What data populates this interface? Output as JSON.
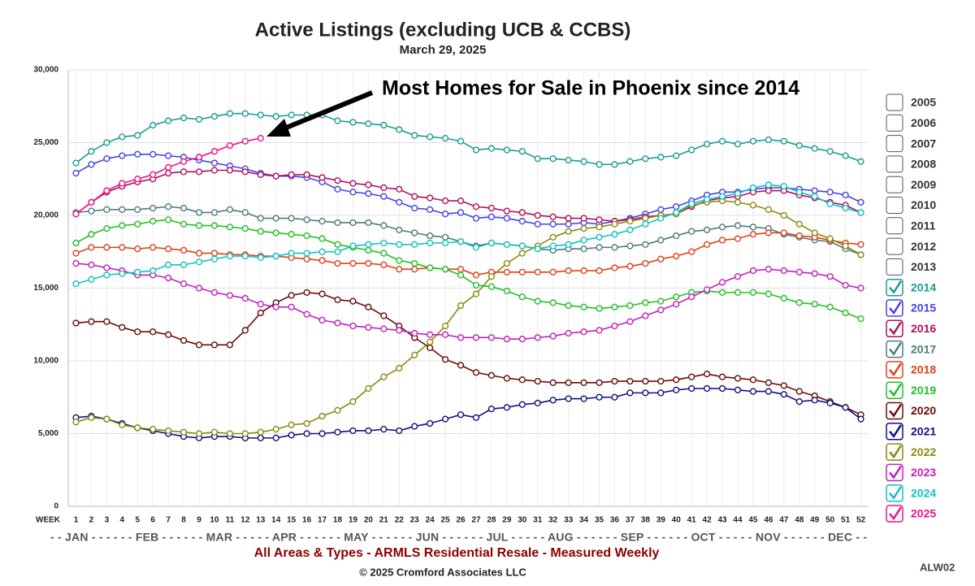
{
  "chart_data": {
    "type": "line",
    "title": "Active Listings (excluding UCB & CCBS)",
    "subtitle": "March 29, 2025",
    "annotation": "Most Homes for Sale in Phoenix since 2014",
    "x_label": "WEEK",
    "x_axis_months": "- - JAN - - - - - - FEB - - - - - - MAR - - - - - APR - - - - - - MAY - - - - - - JUN - - - - - - JUL - - - - - AUG - - - - - - SEP - - - - - - OCT - - - - - NOV - - - - - - DEC - -",
    "caption": "All Areas & Types - ARMLS Residential Resale - Measured Weekly",
    "copyright": "© 2025 Cromford Associates LLC",
    "code": "ALW02",
    "unchecked_years": [
      "2005",
      "2006",
      "2007",
      "2008",
      "2009",
      "2010",
      "2011",
      "2012",
      "2013"
    ],
    "grid": true,
    "xlim": [
      0.5,
      52.5
    ],
    "xticks": [
      1,
      2,
      3,
      4,
      5,
      6,
      7,
      8,
      9,
      10,
      11,
      12,
      13,
      14,
      15,
      16,
      17,
      18,
      19,
      20,
      21,
      22,
      23,
      24,
      25,
      26,
      27,
      28,
      29,
      30,
      31,
      32,
      33,
      34,
      35,
      36,
      37,
      38,
      39,
      40,
      41,
      42,
      43,
      44,
      45,
      46,
      47,
      48,
      49,
      50,
      51,
      52
    ],
    "ylim": [
      0,
      30000
    ],
    "yticks": [
      0,
      {
        "value": 5000,
        "label": "5,000"
      },
      {
        "value": 10000,
        "label": "10,000"
      },
      {
        "value": 15000,
        "label": "15,000"
      },
      {
        "value": 20000,
        "label": "20,000"
      },
      {
        "value": 25000,
        "label": "25,000"
      },
      {
        "value": 30000,
        "label": "30,000"
      }
    ],
    "x": [
      1,
      2,
      3,
      4,
      5,
      6,
      7,
      8,
      9,
      10,
      11,
      12,
      13,
      14,
      15,
      16,
      17,
      18,
      19,
      20,
      21,
      22,
      23,
      24,
      25,
      26,
      27,
      28,
      29,
      30,
      31,
      32,
      33,
      34,
      35,
      36,
      37,
      38,
      39,
      40,
      41,
      42,
      43,
      44,
      45,
      46,
      47,
      48,
      49,
      50,
      51,
      52
    ],
    "series": [
      {
        "name": "2014",
        "color": "#1a9e8c",
        "values": [
          23600,
          24400,
          25000,
          25400,
          25500,
          26200,
          26500,
          26700,
          26600,
          26800,
          27000,
          27000,
          26900,
          26800,
          26900,
          26900,
          26900,
          26500,
          26400,
          26300,
          26200,
          25900,
          25500,
          25400,
          25300,
          25100,
          24500,
          24600,
          24500,
          24400,
          23900,
          23900,
          23800,
          23700,
          23500,
          23500,
          23700,
          23900,
          24000,
          24100,
          24500,
          24900,
          25100,
          24900,
          25100,
          25200,
          25100,
          24800,
          24600,
          24400,
          24100,
          23700
        ]
      },
      {
        "name": "2015",
        "color": "#4444e6",
        "values": [
          22900,
          23500,
          23900,
          24100,
          24200,
          24200,
          24100,
          24000,
          23800,
          23600,
          23400,
          23200,
          22900,
          22700,
          22700,
          22600,
          22300,
          21800,
          21600,
          21500,
          21300,
          20900,
          20500,
          20400,
          20100,
          20200,
          19800,
          19900,
          19800,
          19600,
          19400,
          19400,
          19400,
          19500,
          19400,
          19600,
          19800,
          20100,
          20400,
          20600,
          21000,
          21400,
          21600,
          21600,
          21800,
          21900,
          21900,
          21800,
          21700,
          21600,
          21400,
          20900
        ]
      },
      {
        "name": "2016",
        "color": "#b0105a",
        "values": [
          20100,
          20900,
          21600,
          22000,
          22300,
          22500,
          22900,
          23000,
          23000,
          23100,
          23100,
          23000,
          22800,
          22700,
          22800,
          22800,
          22600,
          22400,
          22200,
          22100,
          21900,
          21800,
          21300,
          21200,
          21000,
          21000,
          20600,
          20500,
          20300,
          20200,
          20000,
          19900,
          19800,
          19800,
          19700,
          19600,
          19700,
          19900,
          20000,
          20100,
          20600,
          21000,
          21200,
          21300,
          21600,
          21700,
          21700,
          21400,
          21200,
          20900,
          20700,
          20200
        ]
      },
      {
        "name": "2017",
        "color": "#4e7b7b",
        "values": [
          20200,
          20300,
          20400,
          20400,
          20400,
          20500,
          20600,
          20500,
          20200,
          20200,
          20400,
          20200,
          19800,
          19800,
          19800,
          19700,
          19600,
          19500,
          19500,
          19500,
          19300,
          19000,
          18800,
          18600,
          18500,
          18200,
          17900,
          18100,
          18000,
          17900,
          17700,
          17600,
          17700,
          17700,
          17800,
          17800,
          17900,
          18000,
          18300,
          18600,
          18900,
          19000,
          19200,
          19300,
          19200,
          19100,
          18700,
          18500,
          18300,
          18200,
          17700,
          17300
        ]
      },
      {
        "name": "2018",
        "color": "#e0401a",
        "values": [
          17400,
          17800,
          17800,
          17800,
          17700,
          17800,
          17700,
          17600,
          17400,
          17400,
          17300,
          17300,
          17200,
          17200,
          17100,
          17000,
          16900,
          16700,
          16700,
          16700,
          16600,
          16300,
          16300,
          16400,
          16300,
          16300,
          15900,
          16100,
          16100,
          16100,
          16100,
          16100,
          16200,
          16200,
          16200,
          16400,
          16500,
          16700,
          17000,
          17200,
          17500,
          18000,
          18300,
          18400,
          18700,
          18800,
          18800,
          18600,
          18500,
          18300,
          18100,
          18000
        ]
      },
      {
        "name": "2019",
        "color": "#22c022",
        "values": [
          18100,
          18700,
          19100,
          19300,
          19400,
          19600,
          19700,
          19400,
          19300,
          19300,
          19200,
          19100,
          18900,
          18800,
          18700,
          18600,
          18400,
          18000,
          17800,
          17600,
          17400,
          16900,
          16700,
          16400,
          16300,
          15900,
          15200,
          15100,
          14800,
          14400,
          14100,
          14000,
          13800,
          13700,
          13600,
          13700,
          13800,
          14000,
          14100,
          14400,
          14700,
          14800,
          14700,
          14700,
          14700,
          14600,
          14300,
          14000,
          13900,
          13700,
          13300,
          12900
        ]
      },
      {
        "name": "2020",
        "color": "#6b0a0a",
        "values": [
          12600,
          12700,
          12700,
          12300,
          12000,
          12000,
          11800,
          11400,
          11100,
          11100,
          11100,
          12100,
          13300,
          14000,
          14500,
          14700,
          14600,
          14200,
          14100,
          13700,
          13100,
          12400,
          11600,
          10900,
          10100,
          9700,
          9200,
          9000,
          8800,
          8700,
          8600,
          8500,
          8500,
          8500,
          8500,
          8600,
          8600,
          8600,
          8600,
          8700,
          8900,
          9100,
          8900,
          8800,
          8700,
          8500,
          8300,
          7900,
          7600,
          7200,
          6800,
          6300
        ]
      },
      {
        "name": "2021",
        "color": "#101080",
        "values": [
          6100,
          6200,
          6000,
          5700,
          5400,
          5200,
          5000,
          4800,
          4700,
          4800,
          4800,
          4700,
          4700,
          4700,
          4900,
          5000,
          5000,
          5100,
          5200,
          5200,
          5300,
          5200,
          5500,
          5700,
          6000,
          6300,
          6100,
          6700,
          6800,
          7000,
          7100,
          7300,
          7400,
          7400,
          7500,
          7500,
          7800,
          7800,
          7800,
          8000,
          8100,
          8100,
          8100,
          8000,
          7900,
          7900,
          7700,
          7200,
          7300,
          7100,
          6800,
          6000
        ]
      },
      {
        "name": "2022",
        "color": "#8a8a12",
        "values": [
          5800,
          6100,
          6000,
          5600,
          5400,
          5300,
          5200,
          5100,
          5000,
          5100,
          5000,
          5000,
          5100,
          5300,
          5600,
          5700,
          6200,
          6600,
          7200,
          8100,
          8900,
          9500,
          10400,
          11300,
          12400,
          13800,
          14600,
          15800,
          16700,
          17400,
          17900,
          18500,
          18900,
          19100,
          19200,
          19400,
          19600,
          19800,
          20000,
          20100,
          20700,
          20900,
          21000,
          20900,
          20700,
          20400,
          20000,
          19400,
          18800,
          18400,
          17900,
          17300
        ]
      },
      {
        "name": "2023",
        "color": "#c020c0",
        "values": [
          16700,
          16600,
          16400,
          16200,
          15900,
          15900,
          15700,
          15300,
          15000,
          14700,
          14500,
          14300,
          13900,
          13700,
          13700,
          13200,
          12800,
          12600,
          12400,
          12300,
          12200,
          12100,
          11900,
          11800,
          11800,
          11600,
          11600,
          11600,
          11500,
          11500,
          11600,
          11700,
          11900,
          12000,
          12100,
          12400,
          12700,
          13100,
          13500,
          13900,
          14400,
          14900,
          15400,
          15800,
          16200,
          16300,
          16200,
          16100,
          16000,
          15800,
          15200,
          15000
        ]
      },
      {
        "name": "2024",
        "color": "#12c0c4",
        "values": [
          15300,
          15600,
          15900,
          16000,
          16100,
          16200,
          16600,
          16600,
          16800,
          17000,
          17200,
          17200,
          17100,
          17200,
          17400,
          17400,
          17500,
          17500,
          17900,
          18000,
          18100,
          18000,
          18000,
          18100,
          18100,
          18200,
          17800,
          18100,
          18000,
          17900,
          17700,
          17900,
          18000,
          18300,
          18500,
          18700,
          19000,
          19400,
          19800,
          20200,
          20800,
          21100,
          21300,
          21500,
          21900,
          22100,
          22000,
          21600,
          21300,
          20800,
          20500,
          20200
        ]
      },
      {
        "name": "2025",
        "color": "#f0108c",
        "values": [
          20100,
          20900,
          21700,
          22200,
          22500,
          22800,
          23300,
          23700,
          24000,
          24400,
          24800,
          25100,
          25300,
          null,
          null,
          null,
          null,
          null,
          null,
          null,
          null,
          null,
          null,
          null,
          null,
          null,
          null,
          null,
          null,
          null,
          null,
          null,
          null,
          null,
          null,
          null,
          null,
          null,
          null,
          null,
          null,
          null,
          null,
          null,
          null,
          null,
          null,
          null,
          null,
          null,
          null,
          null
        ]
      }
    ]
  }
}
